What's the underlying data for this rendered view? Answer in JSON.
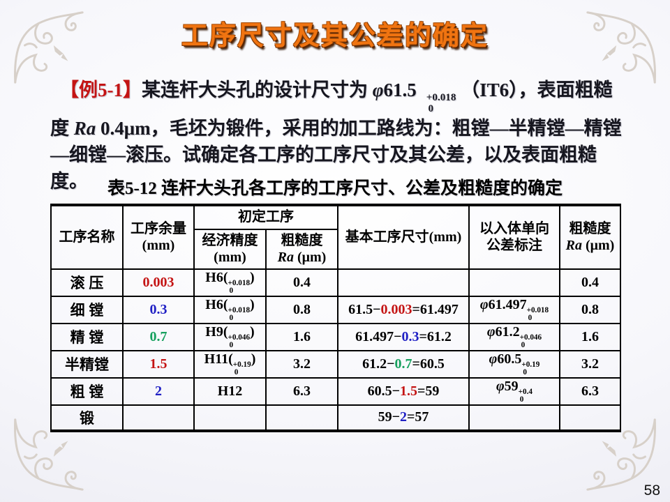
{
  "colors": {
    "red": "#c41414",
    "blue": "#2020c4",
    "green": "#16a05e",
    "title": "#f07411"
  },
  "page": {
    "number": "58"
  },
  "title": {
    "text": "工序尺寸及其公差的确定"
  },
  "intro": {
    "parts": [
      {
        "t": "【例5-1】",
        "c": "red"
      },
      {
        "t": "某连杆大头孔的设计尺寸为 "
      },
      {
        "t": "φ",
        "i": true
      },
      {
        "t": "61.5",
        "sf": true
      },
      {
        "stack": [
          "+0.018",
          "0"
        ]
      },
      {
        "t": " （IT6），表面粗糙度 "
      },
      {
        "t": "Ra",
        "i": true
      },
      {
        "t": " 0.4μm",
        "sf": true
      },
      {
        "t": "，毛坯为锻件，采用的加工路线为：粗镗—半精镗—精镗—细镗—滚压。试确定各工序的工序尺寸及其公差，以及表面粗糙度。"
      }
    ]
  },
  "table": {
    "caption": "表5-12  连杆大头孔各工序的工序尺寸、公差及粗糙度的确定",
    "headers": {
      "process": [
        {
          "t": "工序名称"
        }
      ],
      "allowance": [
        {
          "t": "工序余量"
        },
        {
          "br": true
        },
        {
          "t": "(mm)",
          "sf": true
        }
      ],
      "initial_group": [
        {
          "t": "初定工序"
        }
      ],
      "precision": [
        {
          "t": "经济精度"
        },
        {
          "br": true
        },
        {
          "t": "(mm)",
          "sf": true
        }
      ],
      "roughness_initial": [
        {
          "t": "粗糙度"
        },
        {
          "br": true
        },
        {
          "t": "Ra",
          "i": true
        },
        {
          "t": " (μm)",
          "sf": true
        }
      ],
      "basic": [
        {
          "t": "基本工序尺寸"
        },
        {
          "t": "(mm)",
          "sf": true
        }
      ],
      "tolerance": [
        {
          "t": "以入体单向"
        },
        {
          "br": true
        },
        {
          "t": "公差标注"
        }
      ],
      "roughness_final": [
        {
          "t": "粗糙度"
        },
        {
          "br": true
        },
        {
          "t": "Ra",
          "i": true
        },
        {
          "t": " (μm)",
          "sf": true
        }
      ]
    },
    "rows": [
      {
        "name": "滚  压",
        "cells": {
          "allowance": [
            {
              "t": "0.003",
              "c": "red"
            }
          ],
          "precision": [
            {
              "t": "H6("
            },
            {
              "stack": [
                "+0.018",
                "0"
              ]
            },
            {
              "t": ")"
            }
          ],
          "roughness_initial": [
            {
              "t": "0.4"
            }
          ],
          "basic": [],
          "tolerance": [],
          "roughness_final": [
            {
              "t": "0.4"
            }
          ]
        }
      },
      {
        "name": "细  镗",
        "cells": {
          "allowance": [
            {
              "t": "0.3",
              "c": "blue"
            }
          ],
          "precision": [
            {
              "t": "H6("
            },
            {
              "stack": [
                "+0.018",
                "0"
              ]
            },
            {
              "t": ")"
            }
          ],
          "roughness_initial": [
            {
              "t": "0.8"
            }
          ],
          "basic": [
            {
              "t": "61.5−"
            },
            {
              "t": "0.003",
              "c": "red"
            },
            {
              "t": "=61.497"
            }
          ],
          "tolerance": [
            {
              "t": "φ",
              "i": true
            },
            {
              "t": "61.497"
            },
            {
              "stack": [
                "+0.018",
                "0"
              ]
            }
          ],
          "roughness_final": [
            {
              "t": "0.8"
            }
          ]
        }
      },
      {
        "name": "精  镗",
        "cells": {
          "allowance": [
            {
              "t": "0.7",
              "c": "green"
            }
          ],
          "precision": [
            {
              "t": "H9("
            },
            {
              "stack": [
                "+0.046",
                "0"
              ]
            },
            {
              "t": ")"
            }
          ],
          "roughness_initial": [
            {
              "t": "1.6"
            }
          ],
          "basic": [
            {
              "t": "61.497−"
            },
            {
              "t": "0.3",
              "c": "blue"
            },
            {
              "t": "=61.2"
            }
          ],
          "tolerance": [
            {
              "t": "φ",
              "i": true
            },
            {
              "t": "61.2"
            },
            {
              "stack": [
                "+0.046",
                "0"
              ]
            }
          ],
          "roughness_final": [
            {
              "t": "1.6"
            }
          ]
        }
      },
      {
        "name": "半精镗",
        "cells": {
          "allowance": [
            {
              "t": "1.5",
              "c": "red"
            }
          ],
          "precision": [
            {
              "t": "H11("
            },
            {
              "stack": [
                "+0.19",
                "0"
              ]
            },
            {
              "t": ")"
            }
          ],
          "roughness_initial": [
            {
              "t": "3.2"
            }
          ],
          "basic": [
            {
              "t": "61.2−"
            },
            {
              "t": "0.7",
              "c": "green"
            },
            {
              "t": "=60.5"
            }
          ],
          "tolerance": [
            {
              "t": "φ",
              "i": true
            },
            {
              "t": "60.5"
            },
            {
              "stack": [
                "+0.19",
                "0"
              ]
            }
          ],
          "roughness_final": [
            {
              "t": "3.2"
            }
          ]
        }
      },
      {
        "name": "粗  镗",
        "cells": {
          "allowance": [
            {
              "t": "2",
              "c": "blue"
            }
          ],
          "precision": [
            {
              "t": "H12"
            }
          ],
          "roughness_initial": [
            {
              "t": "6.3"
            }
          ],
          "basic": [
            {
              "t": "60.5−"
            },
            {
              "t": "1.5",
              "c": "red"
            },
            {
              "t": "=59"
            }
          ],
          "tolerance": [
            {
              "t": "φ",
              "i": true
            },
            {
              "t": "59"
            },
            {
              "stack": [
                "+0.4",
                "0"
              ]
            }
          ],
          "roughness_final": [
            {
              "t": "6.3"
            }
          ]
        }
      },
      {
        "name": "锻",
        "cells": {
          "allowance": [],
          "precision": [],
          "roughness_initial": [],
          "basic": [
            {
              "t": "59−"
            },
            {
              "t": "2",
              "c": "blue"
            },
            {
              "t": "=57"
            }
          ],
          "tolerance": [],
          "roughness_final": []
        }
      }
    ]
  }
}
